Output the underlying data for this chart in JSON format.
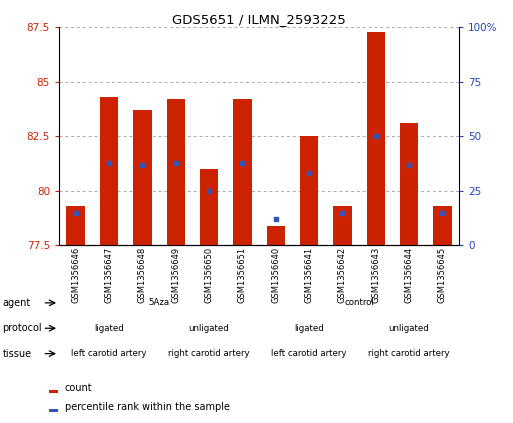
{
  "title": "GDS5651 / ILMN_2593225",
  "samples": [
    "GSM1356646",
    "GSM1356647",
    "GSM1356648",
    "GSM1356649",
    "GSM1356650",
    "GSM1356651",
    "GSM1356640",
    "GSM1356641",
    "GSM1356642",
    "GSM1356643",
    "GSM1356644",
    "GSM1356645"
  ],
  "bar_values": [
    79.3,
    84.3,
    83.7,
    84.2,
    81.0,
    84.2,
    78.4,
    82.5,
    79.3,
    87.3,
    83.1,
    79.3
  ],
  "blue_values": [
    79.0,
    81.3,
    81.2,
    81.3,
    80.0,
    81.3,
    78.7,
    80.8,
    79.0,
    82.5,
    81.2,
    79.0
  ],
  "ymin": 77.5,
  "ymax": 87.5,
  "yticks": [
    77.5,
    80.0,
    82.5,
    85.0,
    87.5
  ],
  "ytick_labels": [
    "77.5",
    "80",
    "82.5",
    "85",
    "87.5"
  ],
  "right_yticks": [
    0,
    25,
    50,
    75,
    100
  ],
  "right_ytick_labels": [
    "0",
    "25",
    "50",
    "75",
    "100%"
  ],
  "bar_color": "#cc2200",
  "blue_color": "#3355bb",
  "grid_color": "#aaaaaa",
  "xtick_bg_color": "#d8d8d8",
  "agent_groups": [
    {
      "label": "5Aza",
      "start": 0,
      "end": 6,
      "color": "#c8f0c0"
    },
    {
      "label": "control",
      "start": 6,
      "end": 12,
      "color": "#55cc55"
    }
  ],
  "protocol_groups": [
    {
      "label": "ligated",
      "start": 0,
      "end": 3,
      "color": "#c0b8e8"
    },
    {
      "label": "unligated",
      "start": 3,
      "end": 6,
      "color": "#9988cc"
    },
    {
      "label": "ligated",
      "start": 6,
      "end": 9,
      "color": "#c0b8e8"
    },
    {
      "label": "unligated",
      "start": 9,
      "end": 12,
      "color": "#9988cc"
    }
  ],
  "tissue_groups": [
    {
      "label": "left carotid artery",
      "start": 0,
      "end": 3,
      "color": "#f0b8b0"
    },
    {
      "label": "right carotid artery",
      "start": 3,
      "end": 6,
      "color": "#cc7766"
    },
    {
      "label": "left carotid artery",
      "start": 6,
      "end": 9,
      "color": "#f0b8b0"
    },
    {
      "label": "right carotid artery",
      "start": 9,
      "end": 12,
      "color": "#cc7766"
    }
  ],
  "bar_width": 0.55,
  "left_label_color": "#cc2200",
  "right_label_color": "#2244bb"
}
